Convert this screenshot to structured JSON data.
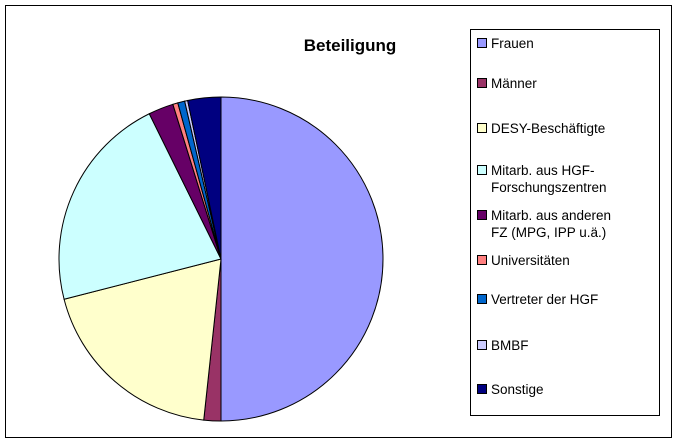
{
  "chart_data": {
    "type": "pie",
    "title": "Beteiligung",
    "categories": [
      "Frauen",
      "Männer",
      "DESY-Beschäftigte",
      "Mitarb. aus HGF-Forschungszentren",
      "Mitarb. aus anderen FZ (MPG, IPP u.ä.)",
      "Universitäten",
      "Vertreter der HGF",
      "BMBF",
      "Sonstige"
    ],
    "values": [
      50,
      1.7,
      19.3,
      21.7,
      2.5,
      0.5,
      0.7,
      0.3,
      3.3
    ],
    "colors": [
      "#9999ff",
      "#993366",
      "#ffffcc",
      "#ccffff",
      "#660066",
      "#ff8080",
      "#0066cc",
      "#ccccff",
      "#000080"
    ],
    "legend": "right"
  }
}
